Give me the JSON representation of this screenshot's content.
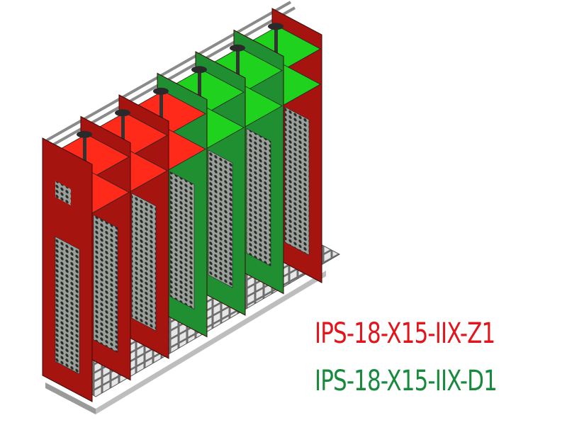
{
  "labels": {
    "z1": {
      "text": "IPS-18-X15-IIX-Z1",
      "color": "#e3141b"
    },
    "d1": {
      "text": "IPS-18-X15-IIX-D1",
      "color": "#178a3c"
    }
  },
  "colors": {
    "red_panel": "#a5140f",
    "red_shelf": "#ff2a1a",
    "green_panel": "#1f8f32",
    "green_shelf": "#1ed21e",
    "floor": "#d8d8d8"
  },
  "rack": {
    "panel_colors": [
      "red",
      "red",
      "red",
      "green",
      "green",
      "green",
      "red"
    ]
  }
}
